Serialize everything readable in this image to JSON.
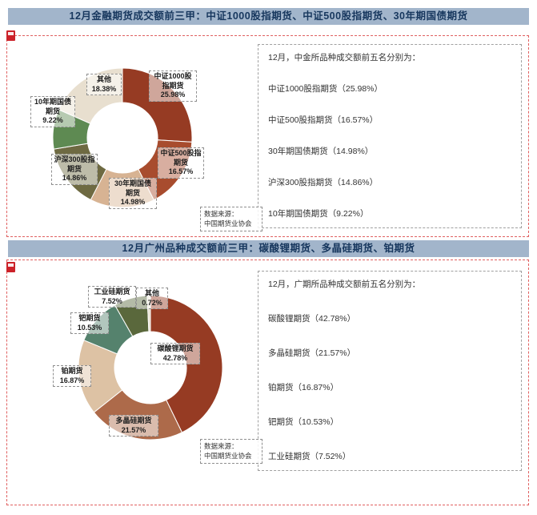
{
  "colors": {
    "header_bg": "#a2b5cb",
    "header_text": "#17375e",
    "print_border_red": "#e06060",
    "label_border_gray": "#8f8f8f"
  },
  "sections": [
    {
      "header": "12月金融期货成交额前三甲：中证1000股指期货、中证500股指期货、30年期国债期货",
      "source_note": [
        "数据来源：",
        "中国期货业协会"
      ],
      "info": {
        "title": "12月，中金所品种成交额前五名分别为：",
        "items": [
          "中证1000股指期货（25.98%）",
          "中证500股指期货（16.57%）",
          "30年期国债期货（14.98%）",
          "沪深300股指期货（14.86%）",
          "10年期国债期货（9.22%）"
        ]
      }
    },
    {
      "header": "12月广州品种成交额前三甲：碳酸锂期货、多晶硅期货、铂期货",
      "source_note": [
        "数据来源：",
        "中国期货业协会"
      ],
      "info": {
        "title": "12月，广期所品种成交额前五名分别为：",
        "items": [
          "碳酸锂期货（42.78%）",
          "多晶硅期货（21.57%）",
          "铂期货（16.87%）",
          "钯期货（10.53%）",
          "工业硅期货（7.52%）"
        ]
      }
    }
  ],
  "chart_data": [
    {
      "type": "pie",
      "subtype": "donut",
      "title": "12月金融期货成交额前三甲：中证1000股指期货、中证500股指期货、30年期国债期货",
      "labels": [
        "中证1000股指期货",
        "中证500股指期货",
        "30年期国债期货",
        "沪深300股指期货",
        "10年期国债期货",
        "其他"
      ],
      "values": [
        25.98,
        16.57,
        14.98,
        14.86,
        9.22,
        18.38
      ],
      "pct_labels": [
        "25.98%",
        "16.57%",
        "14.98%",
        "14.86%",
        "9.22%",
        "18.38%"
      ],
      "colors": [
        "#963b23",
        "#a84c2e",
        "#d7b393",
        "#6e6a42",
        "#5e8a52",
        "#e8dfcf"
      ],
      "start": "top",
      "direction": "clockwise",
      "legend": "none"
    },
    {
      "type": "pie",
      "subtype": "donut",
      "title": "12月广州品种成交额前三甲：碳酸锂期货、多晶硅期货、铂期货",
      "labels": [
        "碳酸锂期货",
        "多晶硅期货",
        "铂期货",
        "钯期货",
        "工业硅期货",
        "其他"
      ],
      "values": [
        42.78,
        21.57,
        16.87,
        10.53,
        7.52,
        0.72
      ],
      "pct_labels": [
        "42.78%",
        "21.57%",
        "16.87%",
        "10.53%",
        "7.52%",
        "0.72%"
      ],
      "colors": [
        "#963b23",
        "#ad6a4a",
        "#ddc2a4",
        "#55826d",
        "#5a683c",
        "#e8dfcf"
      ],
      "start": "top",
      "direction": "clockwise",
      "legend": "none"
    }
  ]
}
